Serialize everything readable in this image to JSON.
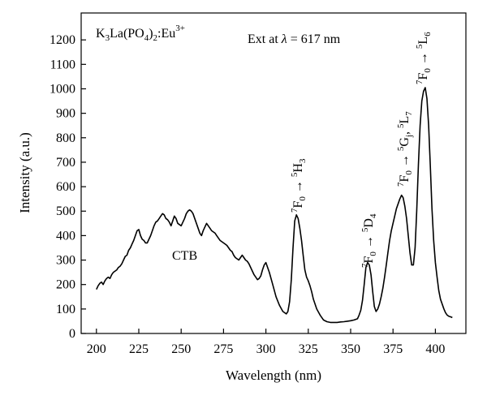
{
  "chart_data": {
    "type": "line",
    "title": "",
    "xlabel": "Wavelength (nm)",
    "ylabel": "Intensity (a.u.)",
    "xlim": [
      191,
      418
    ],
    "ylim": [
      0,
      1310
    ],
    "x_ticks": [
      200,
      225,
      250,
      275,
      300,
      325,
      350,
      375,
      400
    ],
    "y_ticks": [
      0,
      100,
      200,
      300,
      400,
      500,
      600,
      700,
      800,
      900,
      1000,
      1100,
      1200
    ],
    "grid": false,
    "legend": "none",
    "line_color": "#000000",
    "series": [
      {
        "x": [
          200,
          201,
          202,
          203,
          204,
          205,
          206,
          207,
          208,
          209,
          210,
          211,
          212,
          213,
          214,
          215,
          216,
          217,
          218,
          219,
          220,
          221,
          222,
          223,
          224,
          225,
          226,
          227,
          228,
          229,
          230,
          231,
          232,
          233,
          234,
          235,
          236,
          237,
          238,
          239,
          240,
          241,
          242,
          243,
          244,
          245,
          246,
          247,
          248,
          249,
          250,
          251,
          252,
          253,
          254,
          255,
          256,
          257,
          258,
          259,
          260,
          261,
          262,
          263,
          264,
          265,
          266,
          267,
          268,
          269,
          270,
          271,
          272,
          273,
          274,
          275,
          276,
          277,
          278,
          279,
          280,
          281,
          282,
          283,
          284,
          285,
          286,
          287,
          288,
          289,
          290,
          291,
          292,
          293,
          294,
          295,
          296,
          297,
          298,
          299,
          300,
          302,
          304,
          306,
          308,
          310,
          312,
          313,
          314,
          315,
          316,
          317,
          318,
          319,
          320,
          321,
          322,
          323,
          324,
          325,
          326,
          327,
          328,
          330,
          332,
          334,
          336,
          338,
          340,
          342,
          344,
          346,
          348,
          350,
          352,
          354,
          355,
          356,
          357,
          358,
          359,
          360,
          361,
          362,
          363,
          364,
          365,
          366,
          367,
          368,
          369,
          370,
          371,
          372,
          373,
          374,
          375,
          376,
          377,
          378,
          379,
          380,
          381,
          382,
          383,
          384,
          385,
          386,
          387,
          388,
          389,
          390,
          391,
          392,
          393,
          394,
          395,
          396,
          397,
          398,
          399,
          400,
          401,
          402,
          403,
          404,
          405,
          406,
          407,
          408,
          409,
          410
        ],
        "y": [
          180,
          195,
          205,
          210,
          200,
          215,
          225,
          230,
          225,
          240,
          250,
          255,
          260,
          270,
          275,
          285,
          300,
          315,
          320,
          340,
          350,
          365,
          380,
          400,
          420,
          425,
          400,
          385,
          380,
          370,
          370,
          385,
          400,
          420,
          440,
          455,
          460,
          470,
          480,
          490,
          485,
          470,
          465,
          455,
          440,
          460,
          480,
          470,
          450,
          445,
          440,
          455,
          470,
          490,
          500,
          505,
          500,
          490,
          470,
          450,
          430,
          410,
          400,
          420,
          435,
          450,
          440,
          430,
          420,
          415,
          410,
          400,
          390,
          380,
          375,
          370,
          365,
          360,
          350,
          340,
          335,
          320,
          310,
          305,
          300,
          310,
          320,
          310,
          300,
          295,
          285,
          270,
          255,
          240,
          230,
          220,
          225,
          235,
          260,
          280,
          290,
          250,
          200,
          150,
          115,
          90,
          80,
          90,
          130,
          220,
          350,
          460,
          485,
          470,
          430,
          380,
          320,
          260,
          230,
          215,
          195,
          170,
          140,
          100,
          75,
          55,
          48,
          45,
          45,
          45,
          47,
          48,
          50,
          52,
          55,
          60,
          75,
          95,
          135,
          200,
          270,
          290,
          280,
          240,
          170,
          110,
          90,
          100,
          120,
          150,
          185,
          230,
          280,
          330,
          380,
          420,
          450,
          480,
          510,
          530,
          550,
          565,
          555,
          520,
          470,
          400,
          330,
          280,
          280,
          350,
          500,
          690,
          850,
          950,
          990,
          1005,
          960,
          850,
          690,
          510,
          380,
          290,
          230,
          175,
          140,
          120,
          100,
          85,
          75,
          70,
          68,
          65
        ]
      }
    ],
    "annotations": {
      "compound": {
        "main": "K",
        "s1": "3",
        "mid1": "La(PO",
        "s2": "4",
        "mid2": ")",
        "s3": "2",
        "mid3": ":Eu",
        "sup": "3+"
      },
      "excitation": {
        "prefix": "Ext at ",
        "lambda": "λ",
        "suffix": " = 617 nm"
      },
      "ctb": "CTB",
      "t1": {
        "pre": "7",
        "f": "F",
        "fsub": "0",
        "arrow": " → ",
        "post": "5",
        "s": "H",
        "ssub": "3"
      },
      "t2": {
        "pre": "7",
        "f": "F",
        "fsub": "0",
        "arrow": " → ",
        "post": "5",
        "s": "D",
        "ssub": "4"
      },
      "t3": {
        "pre": "7",
        "f": "F",
        "fsub": "0",
        "arrow": " → ",
        "post": "5",
        "s": "G",
        "ssub": "j",
        "sep": ", ",
        "post2": "5",
        "s2": "L",
        "ssub2": "7"
      },
      "t4": {
        "pre": "7",
        "f": "F",
        "fsub": "0",
        "arrow": " → ",
        "post": "5",
        "s": "L",
        "ssub": "6"
      }
    }
  }
}
